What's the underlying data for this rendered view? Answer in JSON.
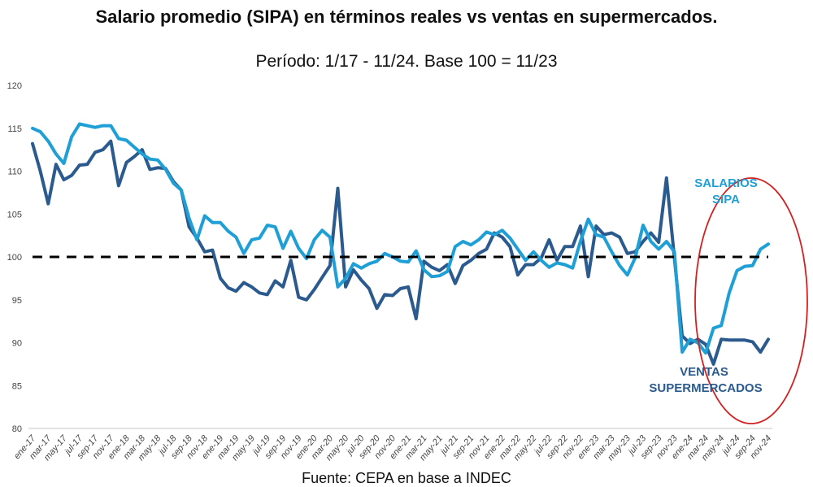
{
  "chart_data": {
    "type": "line",
    "title": "Salario promedio (SIPA) en términos reales vs ventas en supermercados.",
    "subtitle": "Período: 1/17 - 11/24. Base 100 = 11/23",
    "source": "Fuente: CEPA en base a INDEC",
    "xlabel": "",
    "ylabel": "",
    "ylim": [
      80,
      120
    ],
    "yticks": [
      80,
      85,
      90,
      95,
      100,
      105,
      110,
      115,
      120
    ],
    "reference_line": 100,
    "x_tick_labels": [
      "ene-17",
      "mar-17",
      "may-17",
      "jul-17",
      "sep-17",
      "nov-17",
      "ene-18",
      "mar-18",
      "may-18",
      "jul-18",
      "sep-18",
      "nov-18",
      "ene-19",
      "mar-19",
      "may-19",
      "jul-19",
      "sep-19",
      "nov-19",
      "ene-20",
      "mar-20",
      "may-20",
      "jul-20",
      "sep-20",
      "nov-20",
      "ene-21",
      "mar-21",
      "may-21",
      "jul-21",
      "sep-21",
      "nov-21",
      "ene-22",
      "mar-22",
      "may-22",
      "jul-22",
      "sep-22",
      "nov-22",
      "ene-23",
      "mar-23",
      "may-23",
      "jul-23",
      "sep-23",
      "nov-23",
      "ene-24",
      "mar-24",
      "may-24",
      "jul-24",
      "sep-24",
      "nov-24"
    ],
    "x_range": "ene-17 to nov-24 (monthly, 95 points)",
    "series": [
      {
        "name": "Salarios SIPA",
        "label_lines": [
          "SALARIOS",
          "SIPA"
        ],
        "color": "#1e9fd6",
        "values": [
          115,
          114.6,
          113.5,
          112,
          110.9,
          114,
          115.5,
          115.3,
          115.1,
          115.3,
          115.3,
          113.8,
          113.6,
          112.8,
          112,
          111.4,
          111.3,
          110.2,
          108.6,
          107.8,
          104.5,
          102,
          104.8,
          104,
          104,
          103,
          102.3,
          100.4,
          102,
          102.2,
          103.7,
          103.5,
          101,
          103,
          101,
          99.8,
          102,
          103.1,
          102.3,
          96.5,
          97.5,
          99.2,
          98.7,
          99.2,
          99.5,
          100.4,
          100,
          99.5,
          99.4,
          100.7,
          98.5,
          97.7,
          97.8,
          98.3,
          101.2,
          101.8,
          101.4,
          102,
          102.9,
          102.6,
          103.1,
          102.2,
          100.9,
          99.6,
          100.6,
          99.6,
          98.8,
          99.3,
          99.1,
          98.7,
          101.8,
          104.4,
          102.6,
          102.3,
          100.6,
          99,
          97.9,
          99.9,
          103.7,
          101.8,
          100.9,
          101.8,
          100.6,
          88.9,
          90.4,
          90,
          88.8,
          91.7,
          92,
          95.8,
          98.4,
          98.9,
          99,
          100.9,
          101.5
        ]
      },
      {
        "name": "Ventas supermercados",
        "label_lines": [
          "VENTAS",
          "SUPERMERCADOS"
        ],
        "color": "#2b5a8e",
        "values": [
          113.2,
          110,
          106.2,
          110.8,
          109,
          109.5,
          110.7,
          110.8,
          112.2,
          112.5,
          113.5,
          108.3,
          111,
          111.7,
          112.5,
          110.2,
          110.4,
          110.3,
          108.8,
          107.8,
          103.5,
          102.2,
          100.6,
          100.8,
          97.5,
          96.4,
          96,
          97,
          96.5,
          95.8,
          95.6,
          97.2,
          96.5,
          99.6,
          95.3,
          95,
          96.2,
          97.6,
          99,
          108,
          96.5,
          98.5,
          97.3,
          96.3,
          94,
          95.6,
          95.5,
          96.3,
          96.5,
          92.8,
          99.5,
          98.8,
          98.4,
          99.1,
          96.9,
          99,
          99.6,
          100.4,
          100.9,
          102.8,
          102.3,
          101.2,
          97.9,
          99.1,
          99.1,
          99.9,
          102,
          99.6,
          101.2,
          101.2,
          103.6,
          97.7,
          103.6,
          102.6,
          102.8,
          102.3,
          100.4,
          100.6,
          101.8,
          102.8,
          101.7,
          109.2,
          99.9,
          90.8,
          89.9,
          90.4,
          89.8,
          87.5,
          90.4,
          90.3,
          90.3,
          90.3,
          90.1,
          88.9,
          90.4
        ]
      }
    ],
    "highlight": {
      "shape": "ellipse",
      "color": "#d42020",
      "covers": "ene-24 to nov-24"
    }
  }
}
